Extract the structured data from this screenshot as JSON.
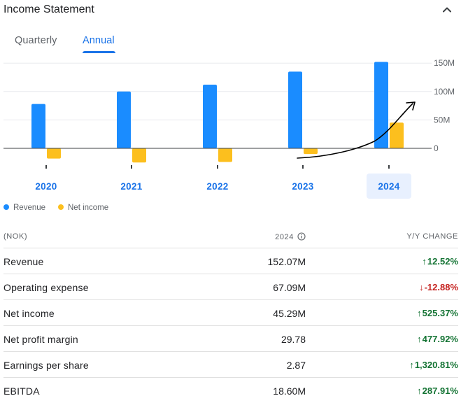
{
  "header": {
    "title": "Income Statement"
  },
  "tabs": [
    {
      "label": "Quarterly",
      "active": false
    },
    {
      "label": "Annual",
      "active": true
    }
  ],
  "chart_data": {
    "type": "bar",
    "categories": [
      "2020",
      "2021",
      "2022",
      "2023",
      "2024"
    ],
    "selected_category": "2024",
    "series": [
      {
        "name": "Revenue",
        "color": "#1a8cff",
        "values": [
          78,
          100,
          112,
          135,
          152.07
        ]
      },
      {
        "name": "Net income",
        "color": "#fcbf1e",
        "values": [
          -18,
          -25,
          -24,
          -10,
          45.29
        ]
      }
    ],
    "y_ticks": [
      "150M",
      "100M",
      "50M",
      "0"
    ],
    "y_tick_values": [
      150,
      100,
      50,
      0
    ],
    "ylim": [
      -35,
      150
    ],
    "grid": true,
    "legend_position": "bottom-left",
    "annotation": "hand-drawn upward trend arrow from 2023 toward 2024"
  },
  "legend": [
    {
      "label": "Revenue",
      "color": "#1a8cff"
    },
    {
      "label": "Net income",
      "color": "#fcbf1e"
    }
  ],
  "table": {
    "headers": {
      "label": "(NOK)",
      "period": "2024",
      "change": "Y/Y CHANGE"
    },
    "rows": [
      {
        "label": "Revenue",
        "value": "152.07M",
        "change": "12.52%",
        "direction": "up"
      },
      {
        "label": "Operating expense",
        "value": "67.09M",
        "change": "-12.88%",
        "direction": "down"
      },
      {
        "label": "Net income",
        "value": "45.29M",
        "change": "525.37%",
        "direction": "up"
      },
      {
        "label": "Net profit margin",
        "value": "29.78",
        "change": "477.92%",
        "direction": "up"
      },
      {
        "label": "Earnings per share",
        "value": "2.87",
        "change": "1,320.81%",
        "direction": "up"
      },
      {
        "label": "EBITDA",
        "value": "18.60M",
        "change": "287.91%",
        "direction": "up"
      }
    ]
  }
}
